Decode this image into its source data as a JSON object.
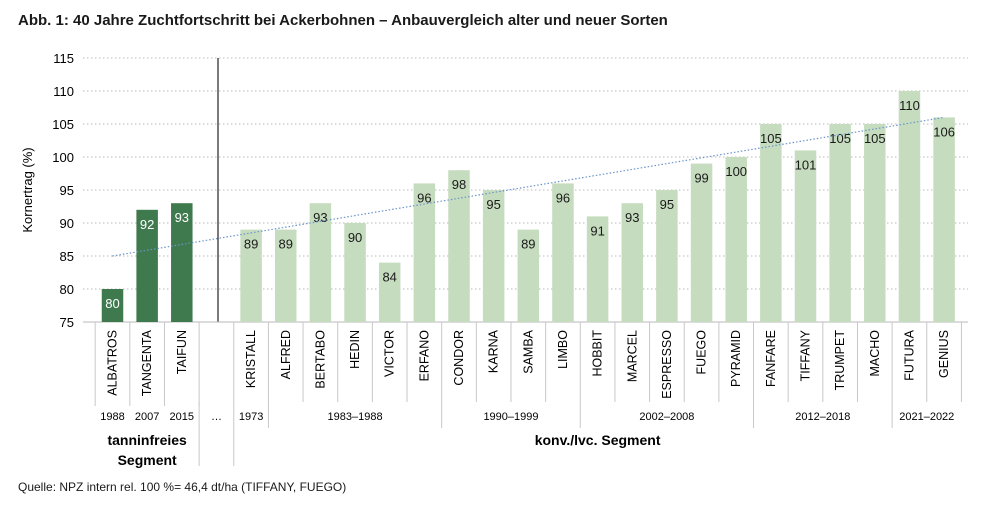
{
  "title": "Abb. 1: 40 Jahre Zuchtfortschritt bei Ackerbohnen – Anbauvergleich alter und neuer Sorten",
  "source": "Quelle: NPZ intern rel. 100 %= 46,4 dt/ha (TIFFANY, FUEGO)",
  "colors": {
    "dark": "#3f7a4e",
    "light": "#c6dcbf",
    "trend": "#6a94c9",
    "grid": "#b9b9b9"
  },
  "chart_data": {
    "type": "bar",
    "ylabel": "Kornertrag (%)",
    "ylim": [
      75,
      115
    ],
    "yticks": [
      75,
      80,
      85,
      90,
      95,
      100,
      105,
      110,
      115
    ],
    "grid": "horizontal dotted",
    "groups": [
      {
        "segment": "tanninfreies Segment",
        "bars": [
          {
            "name": "ALBATROS",
            "value": 80,
            "year": "1988"
          },
          {
            "name": "TANGENTA",
            "value": 92,
            "year": "2007"
          },
          {
            "name": "TAIFUN",
            "value": 93,
            "year": "2015"
          }
        ]
      },
      {
        "segment": "konv./lvc. Segment",
        "bars": [
          {
            "name": "KRISTALL",
            "value": 89
          },
          {
            "name": "ALFRED",
            "value": 89
          },
          {
            "name": "BERTABO",
            "value": 93
          },
          {
            "name": "HEDIN",
            "value": 90
          },
          {
            "name": "VICTOR",
            "value": 84
          },
          {
            "name": "ERFANO",
            "value": 96
          },
          {
            "name": "CONDOR",
            "value": 98
          },
          {
            "name": "KARNA",
            "value": 95
          },
          {
            "name": "SAMBA",
            "value": 89
          },
          {
            "name": "LIMBO",
            "value": 96
          },
          {
            "name": "HOBBIT",
            "value": 91
          },
          {
            "name": "MARCEL",
            "value": 93
          },
          {
            "name": "ESPRESSO",
            "value": 95
          },
          {
            "name": "FUEGO",
            "value": 99
          },
          {
            "name": "PYRAMID",
            "value": 100
          },
          {
            "name": "FANFARE",
            "value": 105
          },
          {
            "name": "TIFFANY",
            "value": 101
          },
          {
            "name": "TRUMPET",
            "value": 105
          },
          {
            "name": "MACHO",
            "value": 105
          },
          {
            "name": "FUTURA",
            "value": 110
          },
          {
            "name": "GENIUS",
            "value": 106
          }
        ],
        "year_groups": [
          {
            "label": "1973",
            "from": "KRISTALL",
            "to": "KRISTALL"
          },
          {
            "label": "1983–1988",
            "from": "ALFRED",
            "to": "ERFANO"
          },
          {
            "label": "1990–1999",
            "from": "CONDOR",
            "to": "LIMBO"
          },
          {
            "label": "2002–2008",
            "from": "HOBBIT",
            "to": "PYRAMID"
          },
          {
            "label": "2012–2018",
            "from": "FANFARE",
            "to": "MACHO"
          },
          {
            "label": "2021–2022",
            "from": "FUTURA",
            "to": "GENIUS"
          }
        ]
      }
    ],
    "gap_label": "…",
    "trendline": {
      "style": "dotted",
      "from_value": 85,
      "to_value": 106
    }
  }
}
